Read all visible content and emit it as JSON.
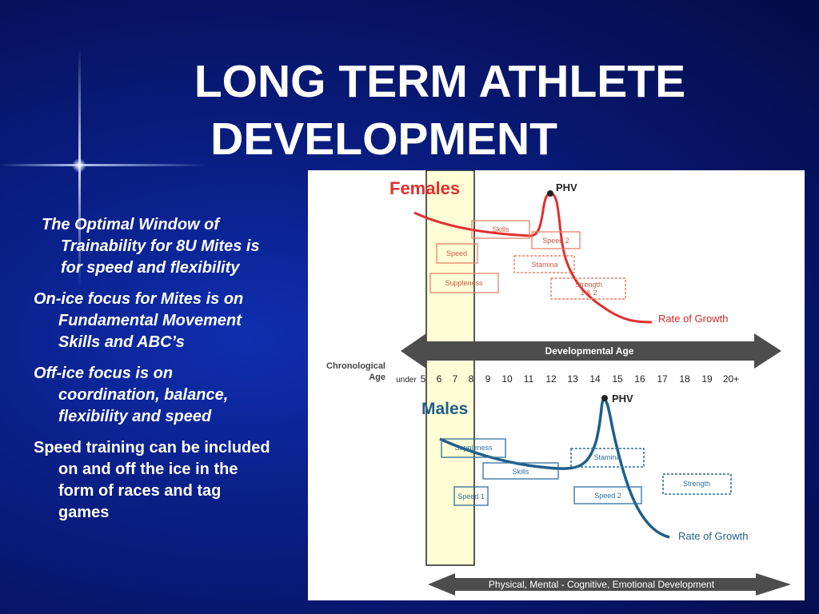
{
  "slide": {
    "title_line1": "LONG TERM ATHLETE",
    "title_line2": "DEVELOPMENT",
    "bullets": [
      "The Optimal Window of Trainability for 8U Mites is for speed and flexibility",
      "On-ice focus for Mites is on Fundamental Movement Skills and ABC’s",
      "Off-ice focus is on coordination, balance, flexibility and speed",
      "Speed training can be included on and off the ice in the form of races and tag games"
    ]
  },
  "figure": {
    "females_label": "Females",
    "males_label": "Males",
    "phv_label": "PHV",
    "rate_label": "Rate of Growth",
    "dev_age_label": "Developmental Age",
    "bottom_label": "Physical, Mental - Cognitive, Emotional Development",
    "chrono_line1": "Chronological",
    "chrono_line2": "Age",
    "ages": [
      "under",
      "5",
      "6",
      "7",
      "8",
      "9",
      "10",
      "11",
      "12",
      "13",
      "14",
      "15",
      "16",
      "17",
      "18",
      "19",
      "20+"
    ],
    "female_boxes": {
      "skills": "Skills",
      "speed": "Speed",
      "speed2": "Speed 2",
      "stamina": "Stamina",
      "suppleness": "Suppleness",
      "strength_l1": "Strength",
      "strength_l2": "1 & 2"
    },
    "male_boxes": {
      "suppleness": "Suppleness",
      "skills": "Skills",
      "stamina": "Stamina",
      "strength": "Strength",
      "speed1": "Speed 1",
      "speed2": "Speed 2"
    },
    "colors": {
      "female_curve": "#e03030",
      "female_box": "#e8826a",
      "male_curve": "#1f5f8a",
      "male_box": "#2e6fa0",
      "arrow": "#4d4d4d",
      "highlight": "#fffdd6"
    }
  }
}
